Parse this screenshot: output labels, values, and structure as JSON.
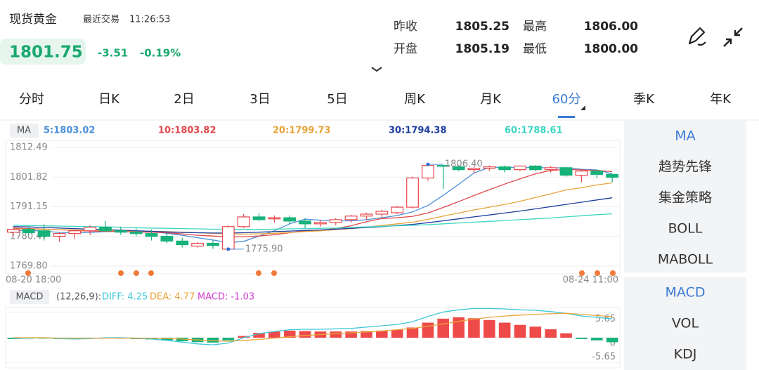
{
  "header": {
    "title": "现货黄金",
    "trade_label": "最近交易",
    "trade_time": "11:26:53",
    "price": "1801.75",
    "change": "-3.51",
    "change_pct": "-0.19%"
  },
  "stats": [
    {
      "label": "昨收",
      "value": "1805.25"
    },
    {
      "label": "最高",
      "value": "1806.00"
    },
    {
      "label": "开盘",
      "value": "1805.19"
    },
    {
      "label": "最低",
      "value": "1800.00"
    }
  ],
  "tabs": [
    "分时",
    "日K",
    "2日",
    "3日",
    "5日",
    "周K",
    "月K",
    "60分",
    "季K",
    "年K"
  ],
  "active_tab": 7,
  "side_panel": {
    "main": [
      "MA",
      "趋势先锋",
      "集金策略",
      "BOLL",
      "MABOLL"
    ],
    "sub": [
      "MACD",
      "VOL",
      "KDJ"
    ],
    "main_active": 0,
    "sub_active": 0
  },
  "chart_data": [
    {
      "type": "candlestick",
      "indicator": "MA",
      "categories": [
        "08-20 18:00",
        null,
        null,
        null,
        null,
        null,
        null,
        null,
        null,
        null,
        null,
        null,
        null,
        null,
        null,
        null,
        null,
        null,
        null,
        null,
        null,
        null,
        null,
        null,
        null,
        null,
        null,
        null,
        null,
        null,
        null,
        null,
        null,
        null,
        null,
        null,
        null,
        null,
        null,
        "08-24 11:00"
      ],
      "open": [
        1782.0,
        1783.0,
        1782.5,
        1780.5,
        1781.5,
        1782.5,
        1783.8,
        1782.5,
        1782.0,
        1781.5,
        1780.5,
        1778.8,
        1777.0,
        1778.0,
        1775.9,
        1784.0,
        1787.5,
        1786.8,
        1787.2,
        1786.0,
        1785.0,
        1785.5,
        1786.5,
        1787.8,
        1788.5,
        1789.0,
        1791.0,
        1801.5,
        1806.0,
        1805.5,
        1804.5,
        1805.0,
        1805.5,
        1804.5,
        1805.8,
        1804.5,
        1805.2,
        1802.5,
        1804.0,
        1802.8
      ],
      "high": [
        1783.5,
        1784.2,
        1784.8,
        1782.0,
        1783.0,
        1784.5,
        1786.0,
        1784.0,
        1783.5,
        1783.0,
        1781.5,
        1780.0,
        1778.5,
        1779.0,
        1784.5,
        1788.5,
        1788.8,
        1788.0,
        1788.0,
        1787.0,
        1786.5,
        1787.0,
        1788.2,
        1789.0,
        1790.0,
        1791.5,
        1802.0,
        1806.4,
        1806.2,
        1806.2,
        1805.5,
        1806.0,
        1806.0,
        1806.0,
        1806.1,
        1805.8,
        1805.5,
        1804.5,
        1804.5,
        1803.0
      ],
      "low": [
        1780.5,
        1781.0,
        1779.0,
        1778.5,
        1779.5,
        1781.0,
        1782.0,
        1781.0,
        1780.5,
        1779.0,
        1778.0,
        1776.5,
        1776.5,
        1776.0,
        1775.9,
        1783.5,
        1786.0,
        1785.5,
        1785.0,
        1783.5,
        1784.0,
        1784.5,
        1785.5,
        1786.5,
        1787.5,
        1788.5,
        1790.5,
        1800.5,
        1797.5,
        1804.0,
        1803.0,
        1804.0,
        1803.5,
        1804.0,
        1804.0,
        1803.5,
        1802.0,
        1800.0,
        1801.5,
        1800.0
      ],
      "close": [
        1783.0,
        1781.8,
        1780.5,
        1781.5,
        1782.5,
        1783.8,
        1782.5,
        1782.0,
        1781.5,
        1780.5,
        1778.8,
        1777.5,
        1778.0,
        1777.2,
        1784.0,
        1787.5,
        1786.5,
        1787.2,
        1786.0,
        1785.0,
        1785.5,
        1786.5,
        1787.8,
        1788.5,
        1789.5,
        1791.0,
        1801.5,
        1806.0,
        1805.8,
        1804.5,
        1805.0,
        1805.5,
        1804.5,
        1805.8,
        1804.5,
        1805.2,
        1802.5,
        1804.0,
        1802.8,
        1801.75
      ],
      "up_color": "#e8474c",
      "down_color": "#17b27a",
      "series": [
        {
          "name": "5:1803.02",
          "color": "#4a90d9",
          "values": [
            1782.5,
            1782.6,
            1782.4,
            1781.9,
            1781.8,
            1781.9,
            1782.2,
            1782.3,
            1782.4,
            1782.3,
            1781.6,
            1780.9,
            1780.0,
            1779.2,
            1778.2,
            1778.7,
            1780.6,
            1782.5,
            1785.0,
            1786.7,
            1786.3,
            1786.1,
            1786.1,
            1786.5,
            1787.2,
            1788.0,
            1789.3,
            1791.6,
            1795.3,
            1799.2,
            1803.3,
            1805.3,
            1805.4,
            1805.2,
            1805.3,
            1805.1,
            1805.2,
            1804.6,
            1804.4,
            1803.02
          ]
        },
        {
          "name": "10:1803.82",
          "color": "#e0474c",
          "values": [
            1783.5,
            1783.3,
            1783.1,
            1782.9,
            1782.6,
            1782.4,
            1782.3,
            1782.2,
            1782.1,
            1782.0,
            1781.8,
            1781.4,
            1780.9,
            1780.6,
            1780.3,
            1780.3,
            1780.6,
            1781.1,
            1781.8,
            1782.5,
            1782.5,
            1783.4,
            1784.3,
            1785.8,
            1786.9,
            1787.2,
            1787.7,
            1788.9,
            1790.9,
            1793.0,
            1795.2,
            1797.3,
            1799.3,
            1801.2,
            1803.0,
            1804.2,
            1804.6,
            1804.4,
            1804.2,
            1803.82
          ]
        },
        {
          "name": "20:1799.73",
          "color": "#e8a43a",
          "values": [
            1783.2,
            1783.1,
            1783.0,
            1782.9,
            1782.8,
            1782.7,
            1782.6,
            1782.5,
            1782.4,
            1782.3,
            1782.2,
            1782.0,
            1781.8,
            1781.6,
            1781.4,
            1781.3,
            1781.4,
            1781.6,
            1781.9,
            1782.2,
            1782.5,
            1782.9,
            1783.3,
            1783.8,
            1784.4,
            1785.0,
            1785.6,
            1786.6,
            1787.8,
            1788.9,
            1790.0,
            1791.0,
            1792.0,
            1793.1,
            1794.5,
            1795.8,
            1797.2,
            1798.0,
            1799.0,
            1799.73
          ]
        },
        {
          "name": "30:1794.38",
          "color": "#1e3ea0",
          "values": [
            1784.0,
            1783.9,
            1783.7,
            1783.5,
            1783.3,
            1783.1,
            1782.9,
            1782.7,
            1782.5,
            1782.3,
            1782.1,
            1781.9,
            1781.8,
            1781.7,
            1781.7,
            1781.8,
            1782.0,
            1782.2,
            1782.4,
            1782.6,
            1782.8,
            1783.1,
            1783.4,
            1783.7,
            1784.0,
            1784.4,
            1784.8,
            1785.4,
            1786.1,
            1786.8,
            1787.5,
            1788.2,
            1788.9,
            1789.6,
            1790.4,
            1791.2,
            1792.0,
            1792.8,
            1793.6,
            1794.38
          ]
        },
        {
          "name": "60:1788.61",
          "color": "#3dd6c0",
          "values": [
            1784.5,
            1784.4,
            1784.3,
            1784.2,
            1784.1,
            1784.0,
            1783.9,
            1783.8,
            1783.6,
            1783.5,
            1783.4,
            1783.3,
            1783.2,
            1783.1,
            1783.0,
            1783.0,
            1783.0,
            1783.1,
            1783.2,
            1783.3,
            1783.4,
            1783.5,
            1783.7,
            1783.9,
            1784.1,
            1784.3,
            1784.5,
            1784.7,
            1785.0,
            1785.3,
            1785.6,
            1785.9,
            1786.2,
            1786.5,
            1786.8,
            1787.1,
            1787.5,
            1787.9,
            1788.3,
            1788.61
          ]
        }
      ],
      "ylim": [
        1767.02,
        1815.02
      ],
      "yticks": [
        1812.49,
        1801.82,
        1791.15,
        1780.47,
        {
          "value": 1769.8,
          "label": "1769.80"
        }
      ],
      "grid": true,
      "annotations": [
        {
          "index": 27,
          "value": 1806.4,
          "label": "1806.40"
        },
        {
          "index": 14,
          "value": 1775.9,
          "label": "1775.90"
        }
      ]
    },
    {
      "type": "macd",
      "indicator": "MACD",
      "params": "(12,26,9):",
      "series": [
        {
          "name": "DIFF: 4.25",
          "color": "#3cc8d8",
          "values": [
            -0.2,
            -0.1,
            0.0,
            -0.2,
            -0.3,
            -0.2,
            0.0,
            0.0,
            -0.1,
            -0.3,
            -0.6,
            -1.0,
            -1.4,
            -1.6,
            -1.2,
            0.0,
            0.9,
            1.4,
            1.8,
            1.9,
            1.9,
            2.0,
            2.1,
            2.4,
            2.7,
            3.0,
            3.6,
            4.8,
            5.8,
            6.3,
            6.6,
            6.6,
            6.5,
            6.3,
            6.2,
            5.9,
            5.5,
            4.9,
            4.6,
            4.25
          ]
        },
        {
          "name": "DEA: 4.77",
          "color": "#e8a43a",
          "values": [
            0.0,
            0.0,
            0.0,
            -0.1,
            -0.1,
            -0.1,
            -0.1,
            -0.1,
            -0.1,
            -0.1,
            -0.2,
            -0.3,
            -0.5,
            -0.7,
            -0.8,
            -0.6,
            -0.4,
            -0.1,
            0.2,
            0.5,
            0.7,
            0.9,
            1.1,
            1.3,
            1.5,
            1.8,
            2.1,
            2.6,
            3.1,
            3.7,
            4.2,
            4.6,
            4.9,
            5.1,
            5.3,
            5.4,
            5.5,
            5.3,
            5.0,
            4.77
          ]
        },
        {
          "name": "MACD: -1.03",
          "color": "#d23fd2",
          "type": "bar",
          "values": [
            -0.3,
            -0.2,
            -0.2,
            -0.3,
            -0.3,
            -0.2,
            -0.1,
            -0.2,
            -0.3,
            -0.4,
            -0.6,
            -0.8,
            -1.0,
            -1.1,
            -0.6,
            0.4,
            1.1,
            1.4,
            1.6,
            1.5,
            1.4,
            1.4,
            1.4,
            1.5,
            1.6,
            1.8,
            2.3,
            3.4,
            4.3,
            4.6,
            4.4,
            4.0,
            3.4,
            2.9,
            2.5,
            1.9,
            1.0,
            -0.3,
            -0.6,
            -1.03
          ]
        }
      ],
      "up_color": "#ef4a4a",
      "down_color": "#17b27a",
      "ylim": [
        -6.5,
        6.5
      ],
      "yticks": [
        5.65,
        0,
        -5.65
      ]
    }
  ]
}
